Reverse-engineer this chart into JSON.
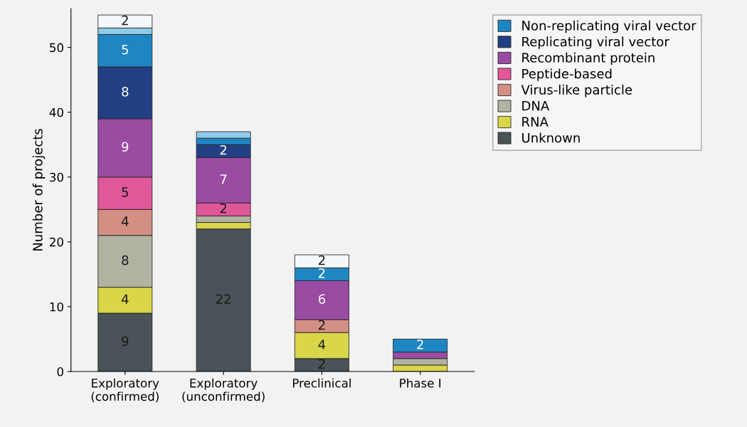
{
  "chart_data": {
    "type": "bar",
    "stacked": true,
    "ylabel": "Number of projects",
    "categories": [
      "Exploratory\n(confirmed)",
      "Exploratory\n(unconfirmed)",
      "Preclinical",
      "Phase I"
    ],
    "ylim": [
      0,
      56
    ],
    "yticks": [
      0,
      10,
      20,
      30,
      40,
      50
    ],
    "grid": false,
    "legend": "top right",
    "series": [
      {
        "name": "Unknown",
        "color": "#4a5358",
        "values": [
          9,
          22,
          2,
          0
        ],
        "value_labels": [
          "9",
          "22",
          "2",
          null
        ]
      },
      {
        "name": "RNA",
        "color": "#d9d64a",
        "values": [
          4,
          1,
          4,
          1
        ],
        "value_labels": [
          "4",
          null,
          "4",
          null
        ]
      },
      {
        "name": "DNA",
        "color": "#b3b3a3",
        "values": [
          8,
          1,
          0,
          1
        ],
        "value_labels": [
          "8",
          null,
          null,
          null
        ]
      },
      {
        "name": "Virus-like particle",
        "color": "#d48f84",
        "values": [
          4,
          0,
          2,
          0
        ],
        "value_labels": [
          "4",
          null,
          "2",
          null
        ]
      },
      {
        "name": "Peptide-based",
        "color": "#e0579a",
        "values": [
          5,
          2,
          0,
          0
        ],
        "value_labels": [
          "5",
          "2",
          null,
          null
        ]
      },
      {
        "name": "Recombinant protein",
        "color": "#9a4ca3",
        "values": [
          9,
          7,
          6,
          1
        ],
        "value_labels": [
          "9",
          "7",
          "6",
          null
        ]
      },
      {
        "name": "Replicating viral vector",
        "color": "#233f84",
        "values": [
          8,
          2,
          0,
          0
        ],
        "value_labels": [
          "8",
          "2",
          null,
          null
        ]
      },
      {
        "name": "Non-replicating viral vector",
        "color": "#1f86c4",
        "values": [
          5,
          1,
          2,
          2
        ],
        "value_labels": [
          "5",
          null,
          "2",
          "2"
        ]
      },
      {
        "color": "#8fcbe8",
        "values": [
          1,
          1,
          0,
          0
        ],
        "value_labels": [
          null,
          null,
          null,
          null
        ]
      },
      {
        "color": "#f5f8fb",
        "values": [
          2,
          0,
          2,
          0
        ],
        "value_labels": [
          "2",
          null,
          "2",
          null
        ]
      }
    ]
  }
}
